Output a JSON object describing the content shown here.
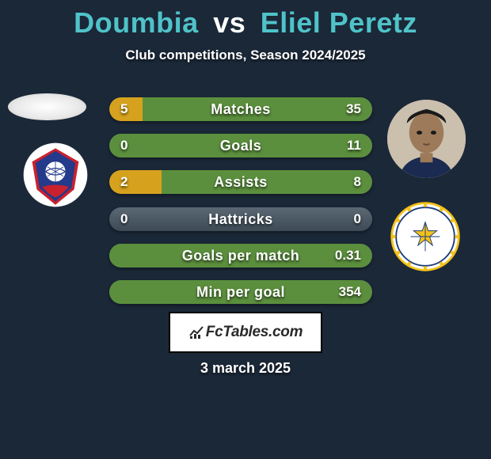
{
  "title": {
    "player1": "Doumbia",
    "vs": "vs",
    "player2": "Eliel Peretz",
    "player_color": "#4fc3c9",
    "vs_color": "#ffffff",
    "fontsize": 36
  },
  "subtitle": {
    "text": "Club competitions, Season 2024/2025",
    "fontsize": 17,
    "color": "#ffffff"
  },
  "background_color": "#1b2838",
  "bar_style": {
    "track_gradient_top": "#5a6873",
    "track_gradient_bottom": "#3e4b56",
    "left_fill_color": "#d6a21e",
    "right_fill_color": "#5b8f3d",
    "height": 30,
    "radius": 15,
    "gap": 16.2,
    "label_fontsize": 18,
    "value_fontsize": 17,
    "text_color": "#ffffff"
  },
  "bars": [
    {
      "label": "Matches",
      "left": "5",
      "right": "35",
      "left_pct": 12.5,
      "right_pct": 87.5
    },
    {
      "label": "Goals",
      "left": "0",
      "right": "11",
      "left_pct": 0.0,
      "right_pct": 100.0
    },
    {
      "label": "Assists",
      "left": "2",
      "right": "8",
      "left_pct": 20.0,
      "right_pct": 80.0
    },
    {
      "label": "Hattricks",
      "left": "0",
      "right": "0",
      "left_pct": 0.0,
      "right_pct": 0.0
    },
    {
      "label": "Goals per match",
      "left": "",
      "right": "0.31",
      "left_pct": 0.0,
      "right_pct": 100.0
    },
    {
      "label": "Min per goal",
      "left": "",
      "right": "354",
      "left_pct": 0.0,
      "right_pct": 100.0
    }
  ],
  "watermark": {
    "text": "FcTables.com",
    "bg": "#ffffff",
    "border": "#000000",
    "text_color": "#2a2a2a",
    "fontsize": 19
  },
  "date": {
    "text": "3 march 2025",
    "fontsize": 18,
    "color": "#ffffff"
  },
  "avatars": {
    "left_bg": "#e8e8e8",
    "right_bg": "#c8b8a8"
  },
  "clubs": {
    "left": {
      "primary": "#c9212e",
      "secondary": "#243a8a",
      "accent": "#ffffff"
    },
    "right": {
      "primary": "#f3c21a",
      "secondary": "#1a3a7a",
      "bg": "#ffffff"
    }
  }
}
